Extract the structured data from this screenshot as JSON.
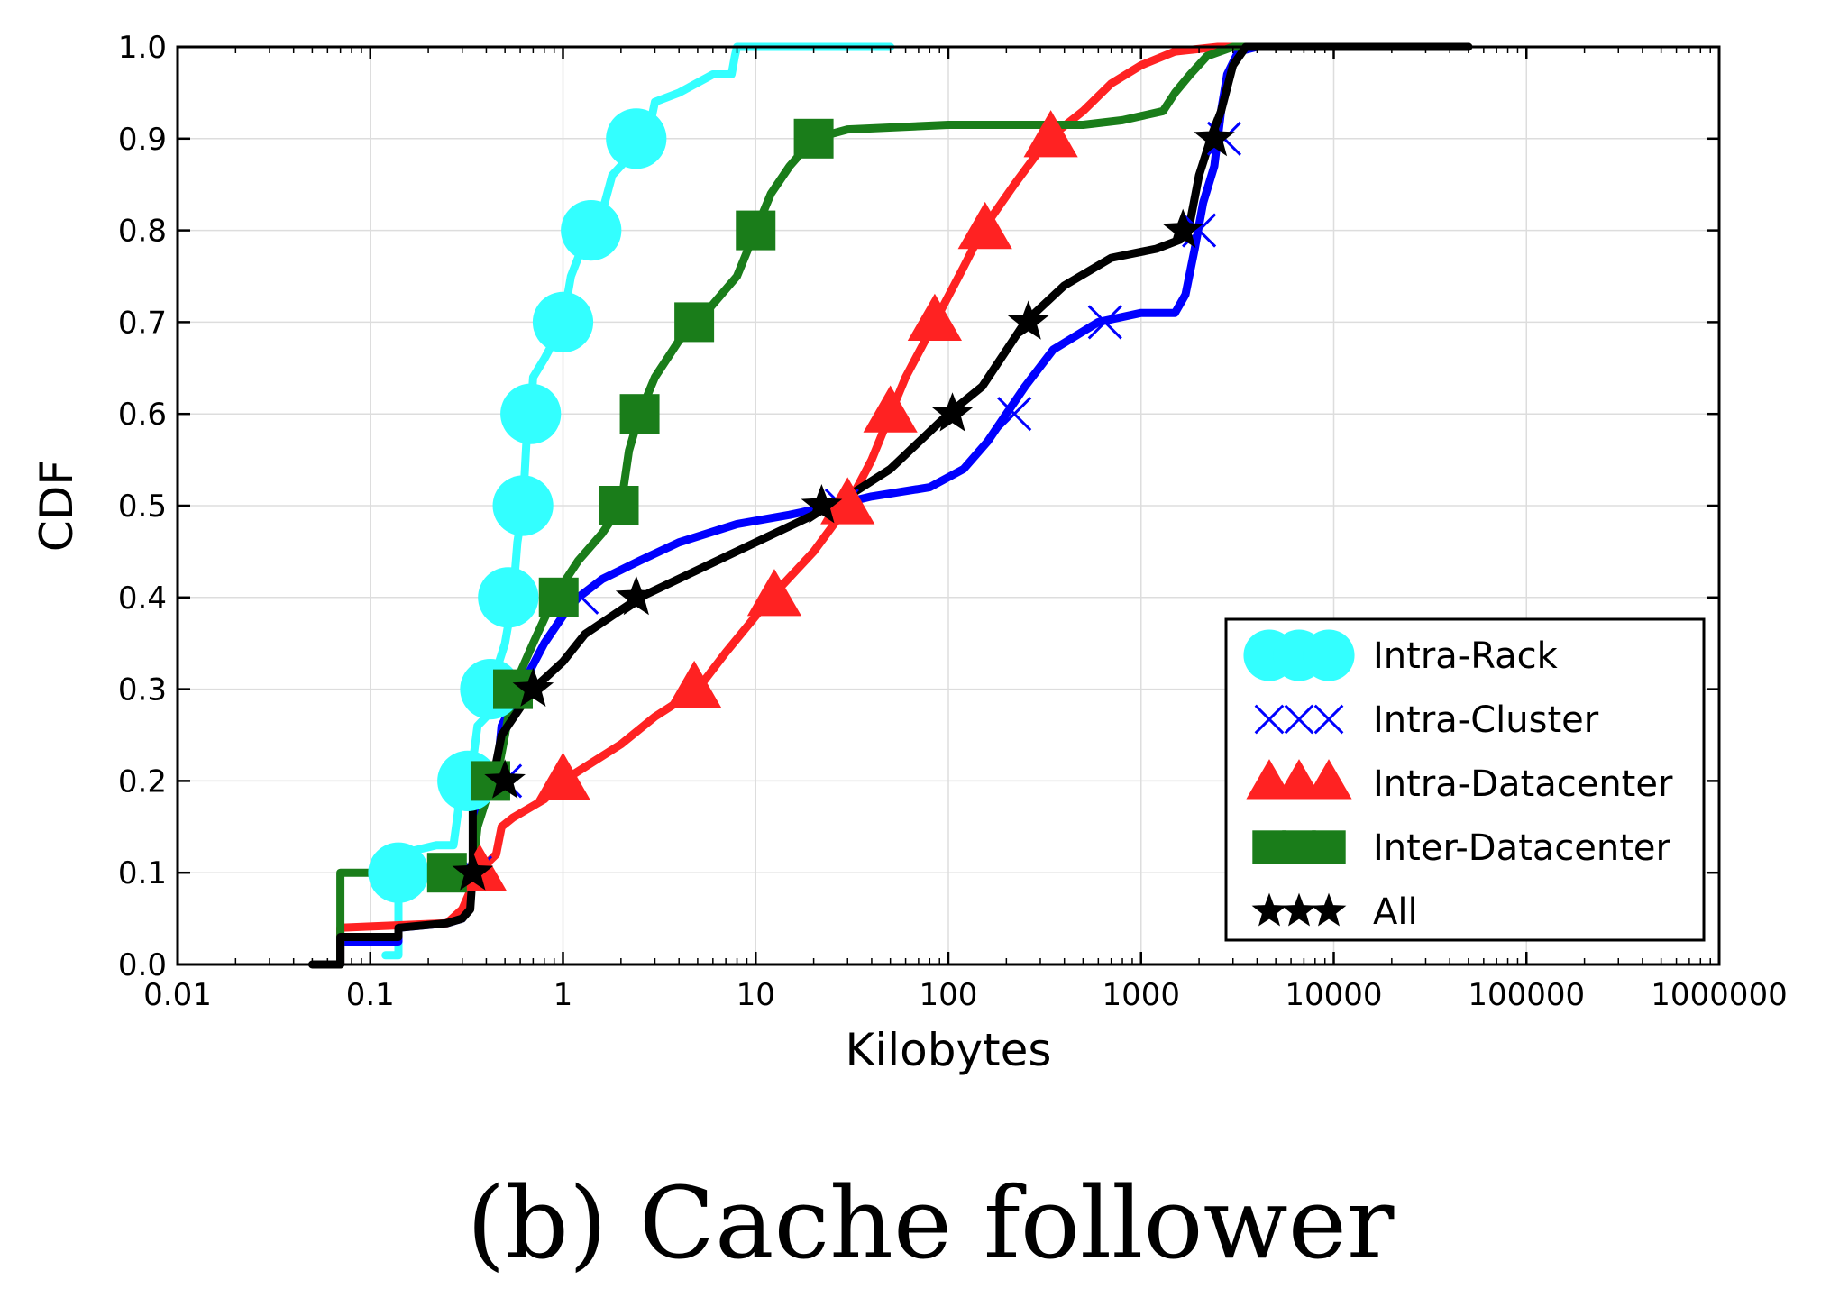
{
  "chart_data": {
    "type": "line",
    "title": "",
    "caption": "(b) Cache follower",
    "xlabel": "Kilobytes",
    "ylabel": "CDF",
    "xscale": "log",
    "xlim": [
      0.01,
      1000000
    ],
    "ylim": [
      0.0,
      1.0
    ],
    "grid": true,
    "legend_position": "bottom-right",
    "xticks": [
      0.01,
      0.1,
      1,
      10,
      100,
      1000,
      10000,
      100000,
      1000000
    ],
    "xtick_labels": [
      "0.01",
      "0.1",
      "1",
      "10",
      "100",
      "1000",
      "10000",
      "100000",
      "1000000"
    ],
    "yticks": [
      0.0,
      0.1,
      0.2,
      0.3,
      0.4,
      0.5,
      0.6,
      0.7,
      0.8,
      0.9,
      1.0
    ],
    "ytick_labels": [
      "0.0",
      "0.1",
      "0.2",
      "0.3",
      "0.4",
      "0.5",
      "0.6",
      "0.7",
      "0.8",
      "0.9",
      "1.0"
    ],
    "series": [
      {
        "name": "Intra-Rack",
        "color": "#33ffff",
        "marker": "circle",
        "points": [
          [
            0.12,
            0.01
          ],
          [
            0.14,
            0.01
          ],
          [
            0.14,
            0.12
          ],
          [
            0.22,
            0.13
          ],
          [
            0.27,
            0.13
          ],
          [
            0.3,
            0.2
          ],
          [
            0.34,
            0.22
          ],
          [
            0.36,
            0.26
          ],
          [
            0.4,
            0.27
          ],
          [
            0.42,
            0.3
          ],
          [
            0.5,
            0.35
          ],
          [
            0.55,
            0.4
          ],
          [
            0.58,
            0.46
          ],
          [
            0.62,
            0.5
          ],
          [
            0.65,
            0.58
          ],
          [
            0.68,
            0.6
          ],
          [
            0.7,
            0.64
          ],
          [
            0.8,
            0.66
          ],
          [
            0.9,
            0.68
          ],
          [
            1.0,
            0.7
          ],
          [
            1.1,
            0.75
          ],
          [
            1.25,
            0.78
          ],
          [
            1.4,
            0.8
          ],
          [
            1.6,
            0.82
          ],
          [
            1.8,
            0.86
          ],
          [
            2.2,
            0.88
          ],
          [
            2.5,
            0.9
          ],
          [
            2.8,
            0.91
          ],
          [
            3.0,
            0.94
          ],
          [
            4.0,
            0.95
          ],
          [
            6.0,
            0.97
          ],
          [
            7.5,
            0.97
          ],
          [
            7.8,
            0.99
          ],
          [
            8.0,
            1.0
          ],
          [
            12.0,
            1.0
          ],
          [
            50.0,
            1.0
          ]
        ],
        "markers": [
          [
            0.14,
            0.1
          ],
          [
            0.32,
            0.2
          ],
          [
            0.42,
            0.3
          ],
          [
            0.52,
            0.4
          ],
          [
            0.62,
            0.5
          ],
          [
            0.68,
            0.6
          ],
          [
            1.0,
            0.7
          ],
          [
            1.4,
            0.8
          ],
          [
            2.4,
            0.9
          ]
        ]
      },
      {
        "name": "Intra-Cluster",
        "color": "#0000ff",
        "marker": "x",
        "points": [
          [
            0.06,
            0.0
          ],
          [
            0.07,
            0.0
          ],
          [
            0.07,
            0.025
          ],
          [
            0.14,
            0.025
          ],
          [
            0.14,
            0.04
          ],
          [
            0.25,
            0.045
          ],
          [
            0.3,
            0.05
          ],
          [
            0.33,
            0.07
          ],
          [
            0.34,
            0.1
          ],
          [
            0.35,
            0.18
          ],
          [
            0.45,
            0.2
          ],
          [
            0.48,
            0.26
          ],
          [
            0.6,
            0.3
          ],
          [
            0.8,
            0.35
          ],
          [
            1.0,
            0.38
          ],
          [
            1.2,
            0.4
          ],
          [
            1.6,
            0.42
          ],
          [
            2.0,
            0.43
          ],
          [
            2.5,
            0.44
          ],
          [
            4.0,
            0.46
          ],
          [
            8.0,
            0.48
          ],
          [
            15.0,
            0.49
          ],
          [
            25.0,
            0.5
          ],
          [
            40.0,
            0.51
          ],
          [
            80.0,
            0.52
          ],
          [
            120.0,
            0.54
          ],
          [
            160.0,
            0.57
          ],
          [
            200.0,
            0.6
          ],
          [
            250.0,
            0.63
          ],
          [
            350.0,
            0.67
          ],
          [
            600.0,
            0.7
          ],
          [
            1000.0,
            0.71
          ],
          [
            1500.0,
            0.71
          ],
          [
            1700.0,
            0.73
          ],
          [
            1900.0,
            0.78
          ],
          [
            2100.0,
            0.83
          ],
          [
            2400.0,
            0.87
          ],
          [
            2600.0,
            0.93
          ],
          [
            2800.0,
            0.97
          ],
          [
            3200.0,
            0.995
          ],
          [
            4000.0,
            1.0
          ],
          [
            50000.0,
            1.0
          ]
        ],
        "markers": [
          [
            0.35,
            0.1
          ],
          [
            0.5,
            0.2
          ],
          [
            0.55,
            0.3
          ],
          [
            1.25,
            0.4
          ],
          [
            28.0,
            0.5
          ],
          [
            220.0,
            0.6
          ],
          [
            650.0,
            0.7
          ],
          [
            2000.0,
            0.8
          ],
          [
            2700.0,
            0.9
          ]
        ]
      },
      {
        "name": "Intra-Datacenter",
        "color": "#ff2222",
        "marker": "triangle",
        "points": [
          [
            0.07,
            0.0
          ],
          [
            0.07,
            0.04
          ],
          [
            0.25,
            0.045
          ],
          [
            0.3,
            0.06
          ],
          [
            0.33,
            0.08
          ],
          [
            0.36,
            0.1
          ],
          [
            0.45,
            0.12
          ],
          [
            0.48,
            0.15
          ],
          [
            0.55,
            0.16
          ],
          [
            0.8,
            0.18
          ],
          [
            1.0,
            0.2
          ],
          [
            2.0,
            0.24
          ],
          [
            3.0,
            0.27
          ],
          [
            5.0,
            0.3
          ],
          [
            7.0,
            0.34
          ],
          [
            12.0,
            0.4
          ],
          [
            20.0,
            0.45
          ],
          [
            30.0,
            0.5
          ],
          [
            40.0,
            0.55
          ],
          [
            50.0,
            0.6
          ],
          [
            60.0,
            0.64
          ],
          [
            85.0,
            0.7
          ],
          [
            120.0,
            0.76
          ],
          [
            150.0,
            0.8
          ],
          [
            220.0,
            0.85
          ],
          [
            330.0,
            0.9
          ],
          [
            500.0,
            0.93
          ],
          [
            700.0,
            0.96
          ],
          [
            1000.0,
            0.98
          ],
          [
            1500.0,
            0.995
          ],
          [
            2500.0,
            1.0
          ],
          [
            50000.0,
            1.0
          ]
        ],
        "markers": [
          [
            0.37,
            0.1
          ],
          [
            1.0,
            0.2
          ],
          [
            4.8,
            0.3
          ],
          [
            12.5,
            0.4
          ],
          [
            30.0,
            0.5
          ],
          [
            50.0,
            0.6
          ],
          [
            85.0,
            0.7
          ],
          [
            155.0,
            0.8
          ],
          [
            340.0,
            0.9
          ]
        ]
      },
      {
        "name": "Inter-Datacenter",
        "color": "#1a7d1a",
        "marker": "square",
        "points": [
          [
            0.07,
            0.0
          ],
          [
            0.07,
            0.1
          ],
          [
            0.3,
            0.1
          ],
          [
            0.34,
            0.1
          ],
          [
            0.36,
            0.15
          ],
          [
            0.4,
            0.18
          ],
          [
            0.45,
            0.2
          ],
          [
            0.5,
            0.25
          ],
          [
            0.55,
            0.3
          ],
          [
            0.7,
            0.35
          ],
          [
            0.9,
            0.4
          ],
          [
            1.2,
            0.44
          ],
          [
            1.6,
            0.47
          ],
          [
            2.0,
            0.5
          ],
          [
            2.2,
            0.56
          ],
          [
            2.5,
            0.6
          ],
          [
            3.0,
            0.64
          ],
          [
            4.0,
            0.68
          ],
          [
            5.0,
            0.7
          ],
          [
            8.0,
            0.75
          ],
          [
            10.0,
            0.8
          ],
          [
            12.0,
            0.84
          ],
          [
            15.0,
            0.87
          ],
          [
            20.0,
            0.9
          ],
          [
            30.0,
            0.91
          ],
          [
            100.0,
            0.915
          ],
          [
            500.0,
            0.915
          ],
          [
            800.0,
            0.92
          ],
          [
            1300.0,
            0.93
          ],
          [
            1500.0,
            0.95
          ],
          [
            1800.0,
            0.97
          ],
          [
            2200.0,
            0.99
          ],
          [
            3000.0,
            1.0
          ],
          [
            50000.0,
            1.0
          ]
        ],
        "markers": [
          [
            0.25,
            0.1
          ],
          [
            0.42,
            0.2
          ],
          [
            0.55,
            0.3
          ],
          [
            0.95,
            0.4
          ],
          [
            1.95,
            0.5
          ],
          [
            2.5,
            0.6
          ],
          [
            4.8,
            0.7
          ],
          [
            10.0,
            0.8
          ],
          [
            20.0,
            0.9
          ]
        ]
      },
      {
        "name": "All",
        "color": "#000000",
        "marker": "star",
        "points": [
          [
            0.05,
            0.0
          ],
          [
            0.07,
            0.0
          ],
          [
            0.07,
            0.03
          ],
          [
            0.14,
            0.03
          ],
          [
            0.14,
            0.04
          ],
          [
            0.25,
            0.045
          ],
          [
            0.3,
            0.05
          ],
          [
            0.33,
            0.06
          ],
          [
            0.34,
            0.1
          ],
          [
            0.34,
            0.17
          ],
          [
            0.4,
            0.19
          ],
          [
            0.45,
            0.22
          ],
          [
            0.48,
            0.25
          ],
          [
            0.6,
            0.28
          ],
          [
            0.7,
            0.3
          ],
          [
            1.0,
            0.33
          ],
          [
            1.3,
            0.36
          ],
          [
            1.8,
            0.38
          ],
          [
            2.5,
            0.4
          ],
          [
            5.0,
            0.43
          ],
          [
            10.0,
            0.46
          ],
          [
            20.0,
            0.49
          ],
          [
            30.0,
            0.51
          ],
          [
            50.0,
            0.54
          ],
          [
            100.0,
            0.6
          ],
          [
            150.0,
            0.63
          ],
          [
            250.0,
            0.7
          ],
          [
            400.0,
            0.74
          ],
          [
            700.0,
            0.77
          ],
          [
            1200.0,
            0.78
          ],
          [
            1600.0,
            0.79
          ],
          [
            1800.0,
            0.81
          ],
          [
            2000.0,
            0.86
          ],
          [
            2300.0,
            0.9
          ],
          [
            2600.0,
            0.93
          ],
          [
            3000.0,
            0.98
          ],
          [
            3500.0,
            1.0
          ],
          [
            50000.0,
            1.0
          ]
        ],
        "markers": [
          [
            0.34,
            0.1
          ],
          [
            0.5,
            0.2
          ],
          [
            0.7,
            0.3
          ],
          [
            2.4,
            0.4
          ],
          [
            22.0,
            0.5
          ],
          [
            105.0,
            0.6
          ],
          [
            260.0,
            0.7
          ],
          [
            1650.0,
            0.8
          ],
          [
            2400.0,
            0.9
          ]
        ]
      }
    ]
  }
}
